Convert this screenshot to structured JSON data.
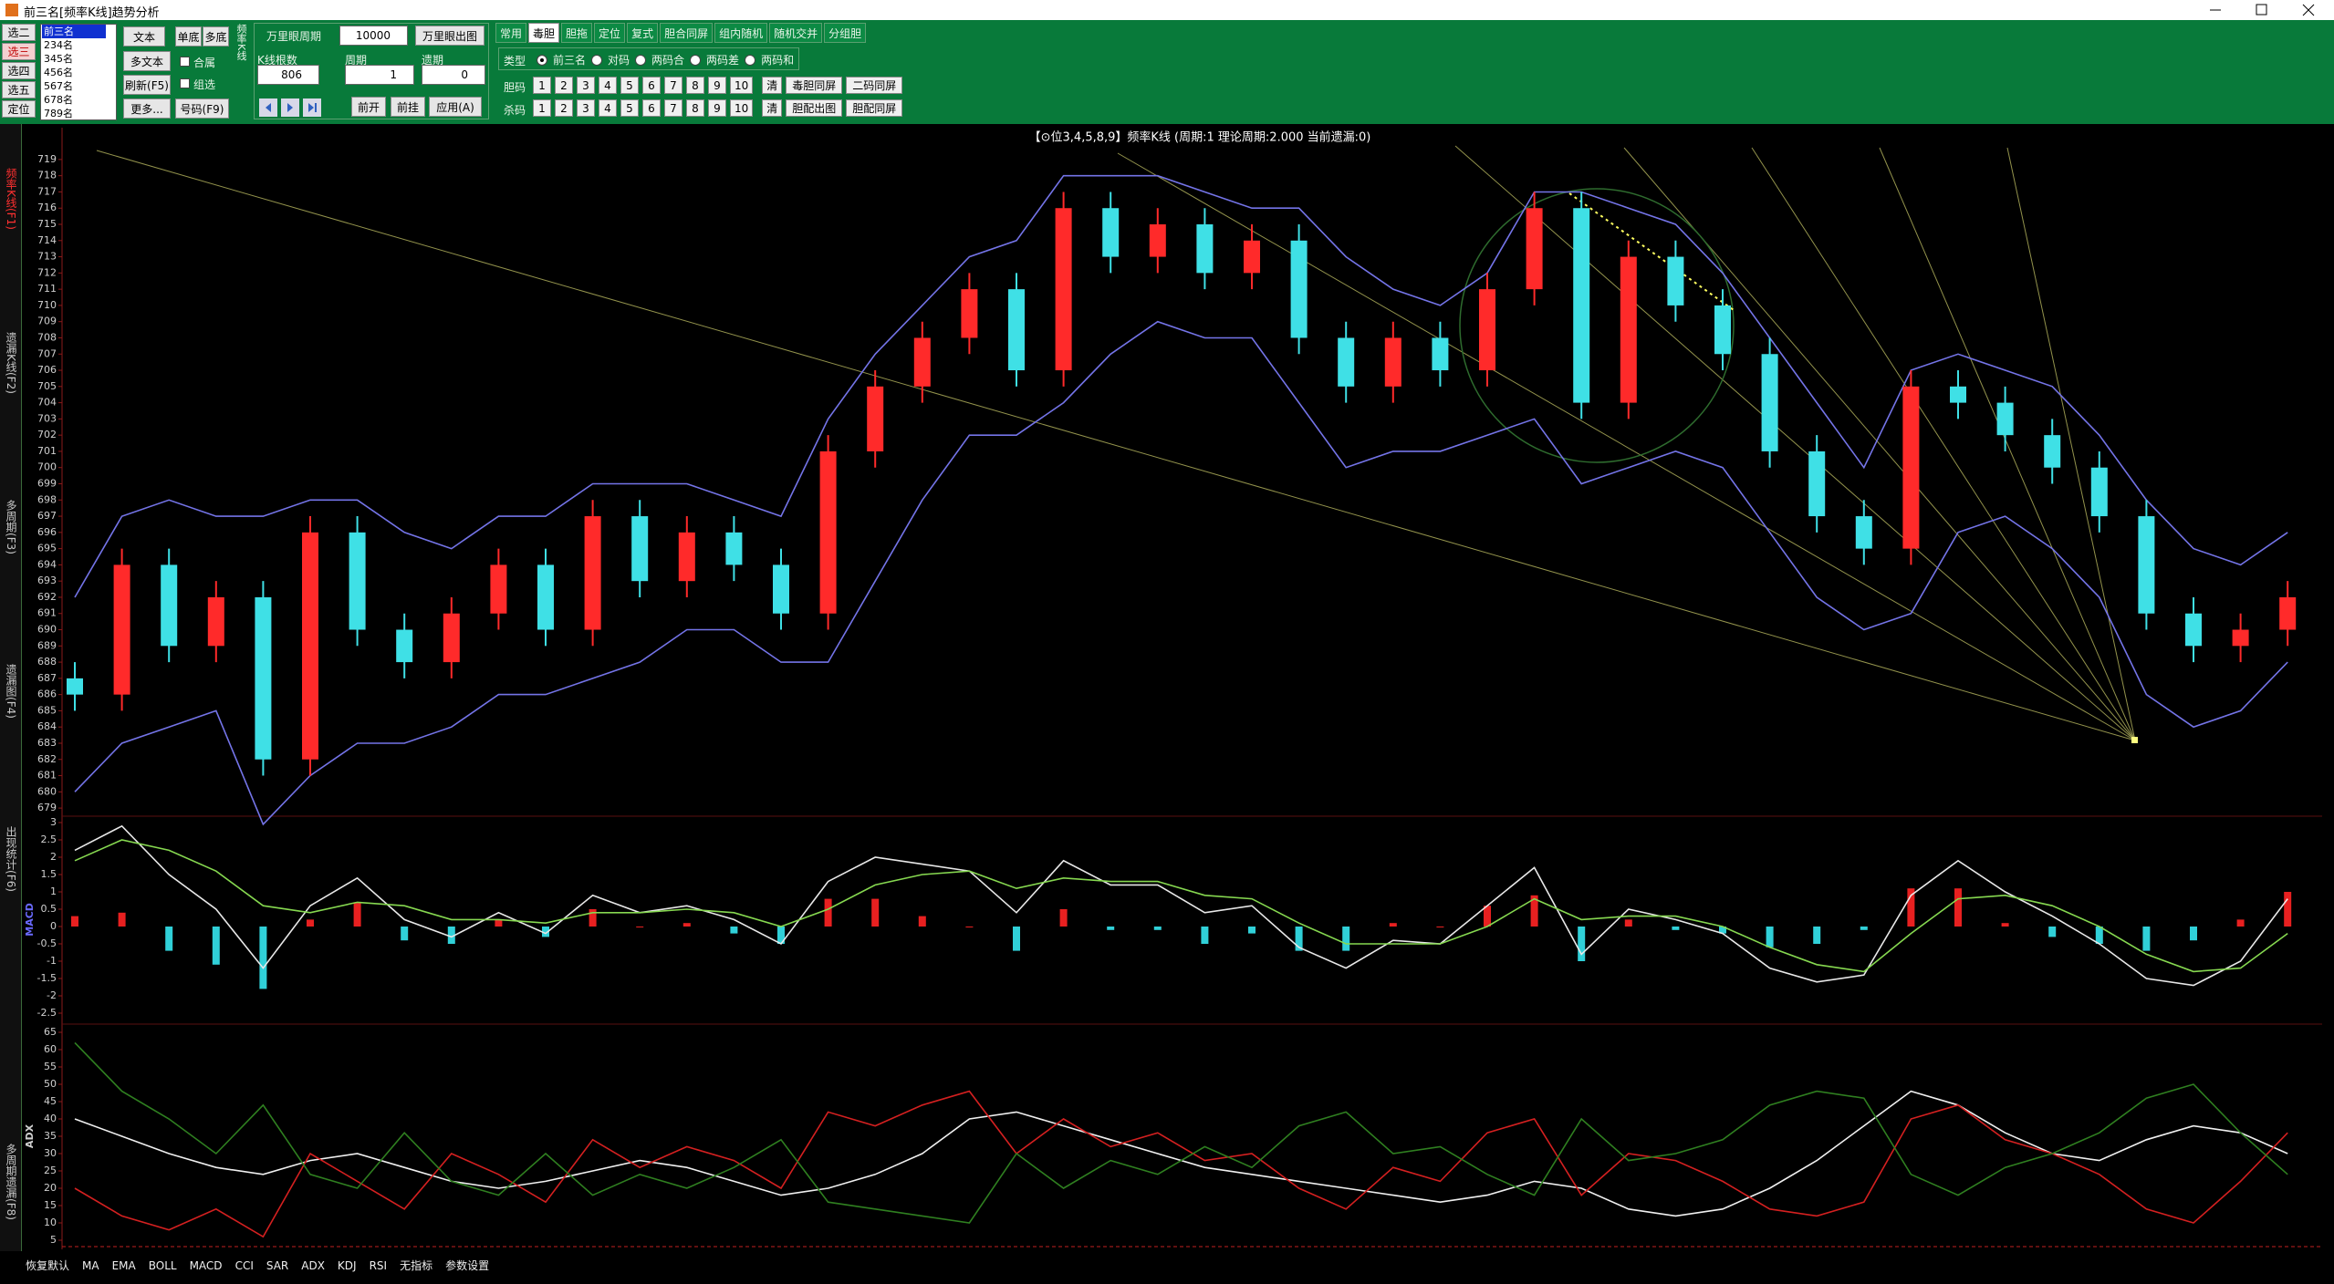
{
  "window": {
    "title": "前三名[频率K线]趋势分析"
  },
  "toolbar": {
    "selectors": [
      "选二",
      "选三",
      "选四",
      "选五",
      "定位"
    ],
    "list": [
      "前三名",
      "234名",
      "345名",
      "456名",
      "567名",
      "678名",
      "789名"
    ],
    "text": "文本",
    "single": "单底",
    "multi": "多底",
    "multi_text": "多文本",
    "combine": "合属",
    "refresh": "刷新(F5)",
    "group": "组选",
    "more": "更多...",
    "number": "号码(F9)",
    "kline_label": "频率K线",
    "period_label": "万里眼周期",
    "period": 10000,
    "chart_button": "万里眼出图",
    "count_label": "K线根数",
    "count": 806,
    "cycle_label": "周期",
    "cycle": 1,
    "miss_label": "遗期",
    "miss": 0,
    "open": "前开",
    "hang": "前挂",
    "apply": "应用(A)",
    "tabs": [
      "常用",
      "毒胆",
      "胆拖",
      "定位",
      "复式",
      "胆合同屏",
      "组内随机",
      "随机交并",
      "分组胆"
    ],
    "type_label": "类型",
    "types": [
      "前三名",
      "对码",
      "两码合",
      "两码差",
      "两码和"
    ],
    "dan_label": "胆码",
    "kill_label": "杀码",
    "digits": [
      1,
      2,
      3,
      4,
      5,
      6,
      7,
      8,
      9,
      10
    ],
    "clear": "清",
    "dan_same": "毒胆同屏",
    "two_same": "二码同屏",
    "pei_chart": "胆配出图",
    "pei_same": "胆配同屏"
  },
  "side_tabs": [
    "频率K线(F1)",
    "遗漏K线(F2)",
    "多周期(F3)",
    "遗漏图(F4)",
    "出现统计(F6)",
    "多周期遗漏(F8)"
  ],
  "indicators": [
    "恢复默认",
    "MA",
    "EMA",
    "BOLL",
    "MACD",
    "CCI",
    "SAR",
    "ADX",
    "KDJ",
    "RSI",
    "无指标",
    "参数设置"
  ],
  "chart_data": [
    {
      "type": "candlestick",
      "title": "【⊙位3,4,5,8,9】频率K线 (周期:1 理论周期:2.000 当前遗漏:0)",
      "open": [
        687,
        686,
        694,
        689,
        692,
        682,
        696,
        690,
        688,
        691,
        694,
        690,
        697,
        693,
        696,
        694,
        691,
        701,
        705,
        708,
        711,
        706,
        716,
        713,
        715,
        712,
        714,
        708,
        705,
        708,
        706,
        711,
        716,
        704,
        713,
        710,
        707,
        701,
        697,
        695,
        705,
        704,
        702,
        700,
        697,
        691,
        689,
        690
      ],
      "high": [
        688,
        695,
        695,
        693,
        693,
        697,
        697,
        691,
        692,
        695,
        695,
        698,
        698,
        697,
        697,
        695,
        702,
        706,
        709,
        712,
        712,
        717,
        717,
        716,
        716,
        715,
        715,
        709,
        709,
        709,
        712,
        717,
        717,
        714,
        714,
        711,
        708,
        702,
        698,
        706,
        706,
        705,
        703,
        701,
        698,
        692,
        691,
        693
      ],
      "low": [
        685,
        685,
        688,
        688,
        681,
        681,
        689,
        687,
        687,
        690,
        689,
        689,
        692,
        692,
        693,
        690,
        690,
        700,
        704,
        707,
        705,
        705,
        712,
        712,
        711,
        711,
        707,
        704,
        704,
        705,
        705,
        710,
        703,
        703,
        709,
        706,
        700,
        696,
        694,
        694,
        703,
        701,
        699,
        696,
        690,
        688,
        688,
        689
      ],
      "close": [
        686,
        694,
        689,
        692,
        682,
        696,
        690,
        688,
        691,
        694,
        690,
        697,
        693,
        696,
        694,
        691,
        701,
        705,
        708,
        711,
        706,
        716,
        713,
        715,
        712,
        714,
        708,
        705,
        708,
        706,
        711,
        716,
        704,
        713,
        710,
        707,
        701,
        697,
        695,
        705,
        704,
        702,
        700,
        697,
        691,
        689,
        690,
        692
      ],
      "up_color": "#ff2a2a",
      "down_color": "#3fe0e6",
      "series": [
        {
          "color": "#7474e8",
          "values": [
            692,
            697,
            698,
            697,
            697,
            698,
            698,
            696,
            695,
            697,
            697,
            699,
            699,
            699,
            698,
            697,
            703,
            707,
            710,
            713,
            714,
            718,
            718,
            718,
            717,
            716,
            716,
            713,
            711,
            710,
            712,
            717,
            717,
            716,
            715,
            712,
            708,
            704,
            700,
            706,
            707,
            706,
            705,
            702,
            698,
            695,
            694,
            696
          ]
        },
        {
          "color": "#7474e8",
          "values": [
            680,
            683,
            684,
            685,
            678,
            681,
            683,
            683,
            684,
            686,
            686,
            687,
            688,
            690,
            690,
            688,
            688,
            693,
            698,
            702,
            702,
            704,
            707,
            709,
            708,
            708,
            704,
            700,
            701,
            701,
            702,
            703,
            699,
            700,
            701,
            700,
            696,
            692,
            690,
            691,
            696,
            697,
            695,
            692,
            686,
            684,
            685,
            688
          ]
        }
      ],
      "ylim": [
        678.5,
        719.5
      ],
      "yticks": [
        679,
        680,
        681,
        682,
        683,
        684,
        685,
        686,
        687,
        688,
        689,
        690,
        691,
        692,
        693,
        694,
        695,
        696,
        697,
        698,
        699,
        700,
        701,
        702,
        703,
        704,
        705,
        706,
        707,
        708,
        709,
        710,
        711,
        712,
        713,
        714,
        715,
        716,
        717,
        718,
        719
      ]
    },
    {
      "type": "macd",
      "label": "MACD",
      "values": [
        0.3,
        0.4,
        -0.7,
        -1.1,
        -1.8,
        0.2,
        0.7,
        -0.4,
        -0.5,
        0.2,
        -0.3,
        0.5,
        0,
        0.1,
        -0.2,
        -0.5,
        0.8,
        0.8,
        0.3,
        0,
        -0.7,
        0.5,
        -0.1,
        -0.1,
        -0.5,
        -0.2,
        -0.7,
        -0.7,
        0.1,
        0,
        0.6,
        0.9,
        -1,
        0.2,
        -0.1,
        -0.2,
        -0.6,
        -0.5,
        -0.1,
        1.1,
        1.1,
        0.1,
        -0.3,
        -0.5,
        -0.7,
        -0.4,
        0.2,
        1.0
      ],
      "up_color": "#e82020",
      "down_color": "#30d0d8",
      "series": [
        {
          "color": "#e8e8e8",
          "values": [
            2.2,
            2.9,
            1.5,
            0.5,
            -1.2,
            0.6,
            1.4,
            0.2,
            -0.3,
            0.4,
            -0.2,
            0.9,
            0.4,
            0.6,
            0.2,
            -0.5,
            1.3,
            2.0,
            1.8,
            1.6,
            0.4,
            1.9,
            1.2,
            1.2,
            0.4,
            0.6,
            -0.6,
            -1.2,
            -0.4,
            -0.5,
            0.6,
            1.7,
            -0.8,
            0.5,
            0.2,
            -0.2,
            -1.2,
            -1.6,
            -1.4,
            0.9,
            1.9,
            1.0,
            0.3,
            -0.5,
            -1.5,
            -1.7,
            -1.0,
            0.8
          ]
        },
        {
          "color": "#86d850",
          "values": [
            1.9,
            2.5,
            2.2,
            1.6,
            0.6,
            0.4,
            0.7,
            0.6,
            0.2,
            0.2,
            0.1,
            0.4,
            0.4,
            0.5,
            0.4,
            0.0,
            0.5,
            1.2,
            1.5,
            1.6,
            1.1,
            1.4,
            1.3,
            1.3,
            0.9,
            0.8,
            0.1,
            -0.5,
            -0.5,
            -0.5,
            0.0,
            0.8,
            0.2,
            0.3,
            0.3,
            0.0,
            -0.6,
            -1.1,
            -1.3,
            -0.2,
            0.8,
            0.9,
            0.6,
            0.0,
            -0.8,
            -1.3,
            -1.2,
            -0.2
          ]
        }
      ],
      "ylim": [
        -2.8,
        3.2
      ],
      "yticks": [
        3,
        2.5,
        2,
        1.5,
        1,
        0.5,
        0,
        -0.5,
        -1,
        -1.5,
        -2,
        -2.5
      ]
    },
    {
      "type": "line",
      "label": "ADX",
      "series": [
        {
          "color": "#f0f0f0",
          "values": [
            40,
            35,
            30,
            26,
            24,
            28,
            30,
            26,
            22,
            20,
            22,
            25,
            28,
            26,
            22,
            18,
            20,
            24,
            30,
            40,
            42,
            38,
            34,
            30,
            26,
            24,
            22,
            20,
            18,
            16,
            18,
            22,
            20,
            14,
            12,
            14,
            20,
            28,
            38,
            48,
            44,
            36,
            30,
            28,
            34,
            38,
            36,
            30
          ]
        },
        {
          "color": "#d42020",
          "values": [
            20,
            12,
            8,
            14,
            6,
            30,
            22,
            14,
            30,
            24,
            16,
            34,
            26,
            32,
            28,
            20,
            42,
            38,
            44,
            48,
            30,
            40,
            32,
            36,
            28,
            30,
            20,
            14,
            26,
            22,
            36,
            40,
            18,
            30,
            28,
            22,
            14,
            12,
            16,
            40,
            44,
            34,
            30,
            24,
            14,
            10,
            22,
            36
          ]
        },
        {
          "color": "#2f7f20",
          "values": [
            62,
            48,
            40,
            30,
            44,
            24,
            20,
            36,
            22,
            18,
            30,
            18,
            24,
            20,
            26,
            34,
            16,
            14,
            12,
            10,
            30,
            20,
            28,
            24,
            32,
            26,
            38,
            42,
            30,
            32,
            24,
            18,
            40,
            28,
            30,
            34,
            44,
            48,
            46,
            24,
            18,
            26,
            30,
            36,
            46,
            50,
            36,
            24
          ]
        }
      ],
      "ylim": [
        3,
        67
      ],
      "yticks": [
        65,
        60,
        55,
        50,
        45,
        40,
        35,
        30,
        25,
        20,
        15,
        10,
        5
      ]
    }
  ]
}
